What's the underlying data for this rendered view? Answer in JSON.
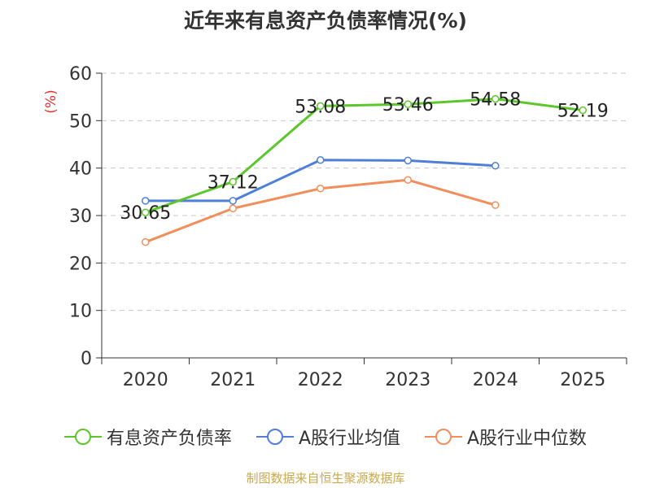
{
  "title": "近年来有息资产负债率情况(%)",
  "source": "制图数据来自恒生聚源数据库",
  "chart_data": {
    "type": "line",
    "categories": [
      "2020",
      "2021",
      "2022",
      "2023",
      "2024",
      "2025"
    ],
    "ylabel": "(%)",
    "ylim": [
      0,
      60
    ],
    "yticks": [
      0,
      10,
      20,
      30,
      40,
      50,
      60
    ],
    "grid": true,
    "legend_position": "bottom",
    "series": [
      {
        "name": "有息资产负债率",
        "color": "#5cc72a",
        "values": [
          30.65,
          37.12,
          53.08,
          53.46,
          54.58,
          52.19
        ],
        "labels": [
          "30.65",
          "37.12",
          "53.08",
          "53.46",
          "54.58",
          "52.19"
        ]
      },
      {
        "name": "A股行业均值",
        "color": "#4f7fd9",
        "values": [
          33.1,
          33.1,
          41.7,
          41.6,
          40.5,
          null
        ]
      },
      {
        "name": "A股行业中位数",
        "color": "#f28e5c",
        "values": [
          24.4,
          31.5,
          35.7,
          37.5,
          32.2,
          null
        ]
      }
    ]
  }
}
